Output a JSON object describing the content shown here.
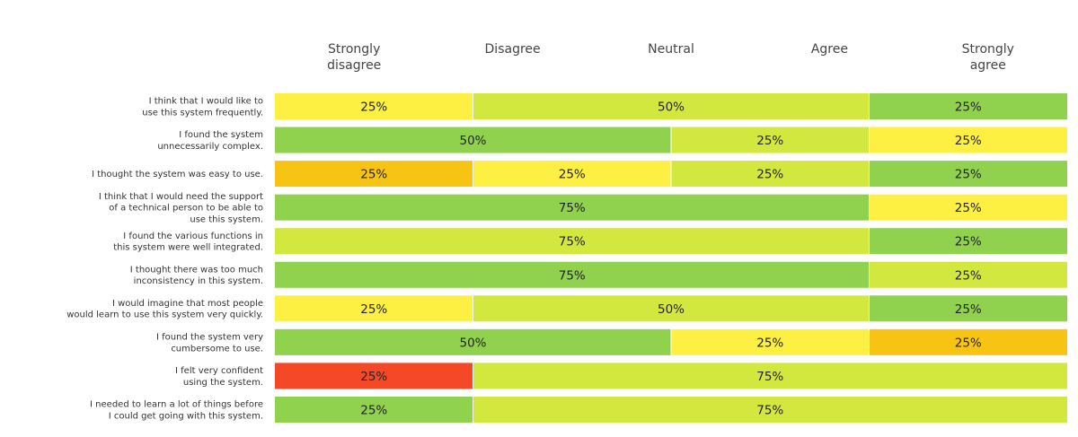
{
  "chart_data": {
    "type": "bar",
    "stacked": true,
    "orientation": "horizontal",
    "percent_stacked": true,
    "columns": [
      "Strongly disagree",
      "Disagree",
      "Neutral",
      "Agree",
      "Strongly agree"
    ],
    "column_lines": [
      [
        "Strongly",
        "disagree"
      ],
      [
        "Disagree"
      ],
      [
        "Neutral"
      ],
      [
        "Agree"
      ],
      [
        "Strongly",
        "agree"
      ]
    ],
    "colors": {
      "orange": "#f8c413",
      "yellow": "#fdf043",
      "lime": "#d2e83e",
      "green": "#90d14e",
      "red": "#f44827"
    },
    "rows": [
      {
        "label": "I think that I would like to use this system frequently.",
        "lines": [
          "I think that I would like to",
          "use this system frequently."
        ],
        "segments": [
          {
            "value": 25,
            "label": "25%",
            "color": "#fdf043"
          },
          {
            "value": 50,
            "label": "50%",
            "color": "#d2e83e"
          },
          {
            "value": 25,
            "label": "25%",
            "color": "#90d14e"
          }
        ]
      },
      {
        "label": "I found the system unnecessarily complex.",
        "lines": [
          "I found the system",
          "unnecessarily complex."
        ],
        "segments": [
          {
            "value": 50,
            "label": "50%",
            "color": "#90d14e"
          },
          {
            "value": 25,
            "label": "25%",
            "color": "#d2e83e"
          },
          {
            "value": 25,
            "label": "25%",
            "color": "#fdf043"
          }
        ]
      },
      {
        "label": "I thought the system was easy to use.",
        "lines": [
          "I thought the system was easy to use."
        ],
        "segments": [
          {
            "value": 25,
            "label": "25%",
            "color": "#f8c413"
          },
          {
            "value": 25,
            "label": "25%",
            "color": "#fdf043"
          },
          {
            "value": 25,
            "label": "25%",
            "color": "#d2e83e"
          },
          {
            "value": 25,
            "label": "25%",
            "color": "#90d14e"
          }
        ]
      },
      {
        "label": "I think that I would need the support of a technical person to be able to use this system.",
        "lines": [
          "I think that I would need the support",
          "of a technical person to be able to",
          "use this system."
        ],
        "segments": [
          {
            "value": 75,
            "label": "75%",
            "color": "#90d14e"
          },
          {
            "value": 25,
            "label": "25%",
            "color": "#fdf043"
          }
        ]
      },
      {
        "label": "I found the various functions in this system were well integrated.",
        "lines": [
          "I found the various functions in",
          "this system were well integrated."
        ],
        "segments": [
          {
            "value": 75,
            "label": "75%",
            "color": "#d2e83e"
          },
          {
            "value": 25,
            "label": "25%",
            "color": "#90d14e"
          }
        ]
      },
      {
        "label": "I thought there was too much inconsistency in this system.",
        "lines": [
          "I thought there was too much",
          "inconsistency in this system."
        ],
        "segments": [
          {
            "value": 75,
            "label": "75%",
            "color": "#90d14e"
          },
          {
            "value": 25,
            "label": "25%",
            "color": "#d2e83e"
          }
        ]
      },
      {
        "label": "I would imagine that most people would learn to use this system very quickly.",
        "lines": [
          "I would imagine that most people",
          "would learn to use this system very quickly."
        ],
        "segments": [
          {
            "value": 25,
            "label": "25%",
            "color": "#fdf043"
          },
          {
            "value": 50,
            "label": "50%",
            "color": "#d2e83e"
          },
          {
            "value": 25,
            "label": "25%",
            "color": "#90d14e"
          }
        ]
      },
      {
        "label": "I found the system very cumbersome to use.",
        "lines": [
          "I found the system very",
          "cumbersome to use."
        ],
        "segments": [
          {
            "value": 50,
            "label": "50%",
            "color": "#90d14e"
          },
          {
            "value": 25,
            "label": "25%",
            "color": "#fdf043"
          },
          {
            "value": 25,
            "label": "25%",
            "color": "#f8c413"
          }
        ]
      },
      {
        "label": "I felt very confident using the system.",
        "lines": [
          "I felt very confident",
          "using the system."
        ],
        "segments": [
          {
            "value": 25,
            "label": "25%",
            "color": "#f44827"
          },
          {
            "value": 75,
            "label": "75%",
            "color": "#d2e83e"
          }
        ]
      },
      {
        "label": "I needed to learn a lot of things before I could get going with this system.",
        "lines": [
          "I needed to learn a lot of things before",
          "I could get going with this system."
        ],
        "segments": [
          {
            "value": 25,
            "label": "25%",
            "color": "#90d14e"
          },
          {
            "value": 75,
            "label": "75%",
            "color": "#d2e83e"
          }
        ]
      }
    ]
  }
}
